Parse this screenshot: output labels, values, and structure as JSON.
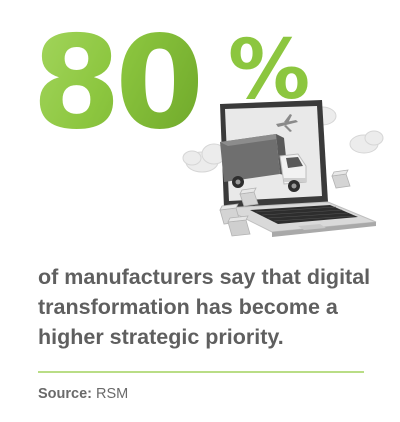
{
  "stat": {
    "number": "80",
    "percent_sign": "%"
  },
  "headline": "of manufacturers say that digital transformation has become a higher strategic priority.",
  "source": {
    "label": "Source:",
    "value": "RSM"
  },
  "illustration": {
    "description_icons": [
      "laptop-icon",
      "delivery-truck-icon",
      "cloud-icon",
      "airplane-icon",
      "package-box-icon"
    ]
  },
  "colors": {
    "accent": "#8cc63f",
    "accent_light": "#b9dd86",
    "text": "#5f5f5f",
    "illustration_gray": "#9a9a9a"
  }
}
